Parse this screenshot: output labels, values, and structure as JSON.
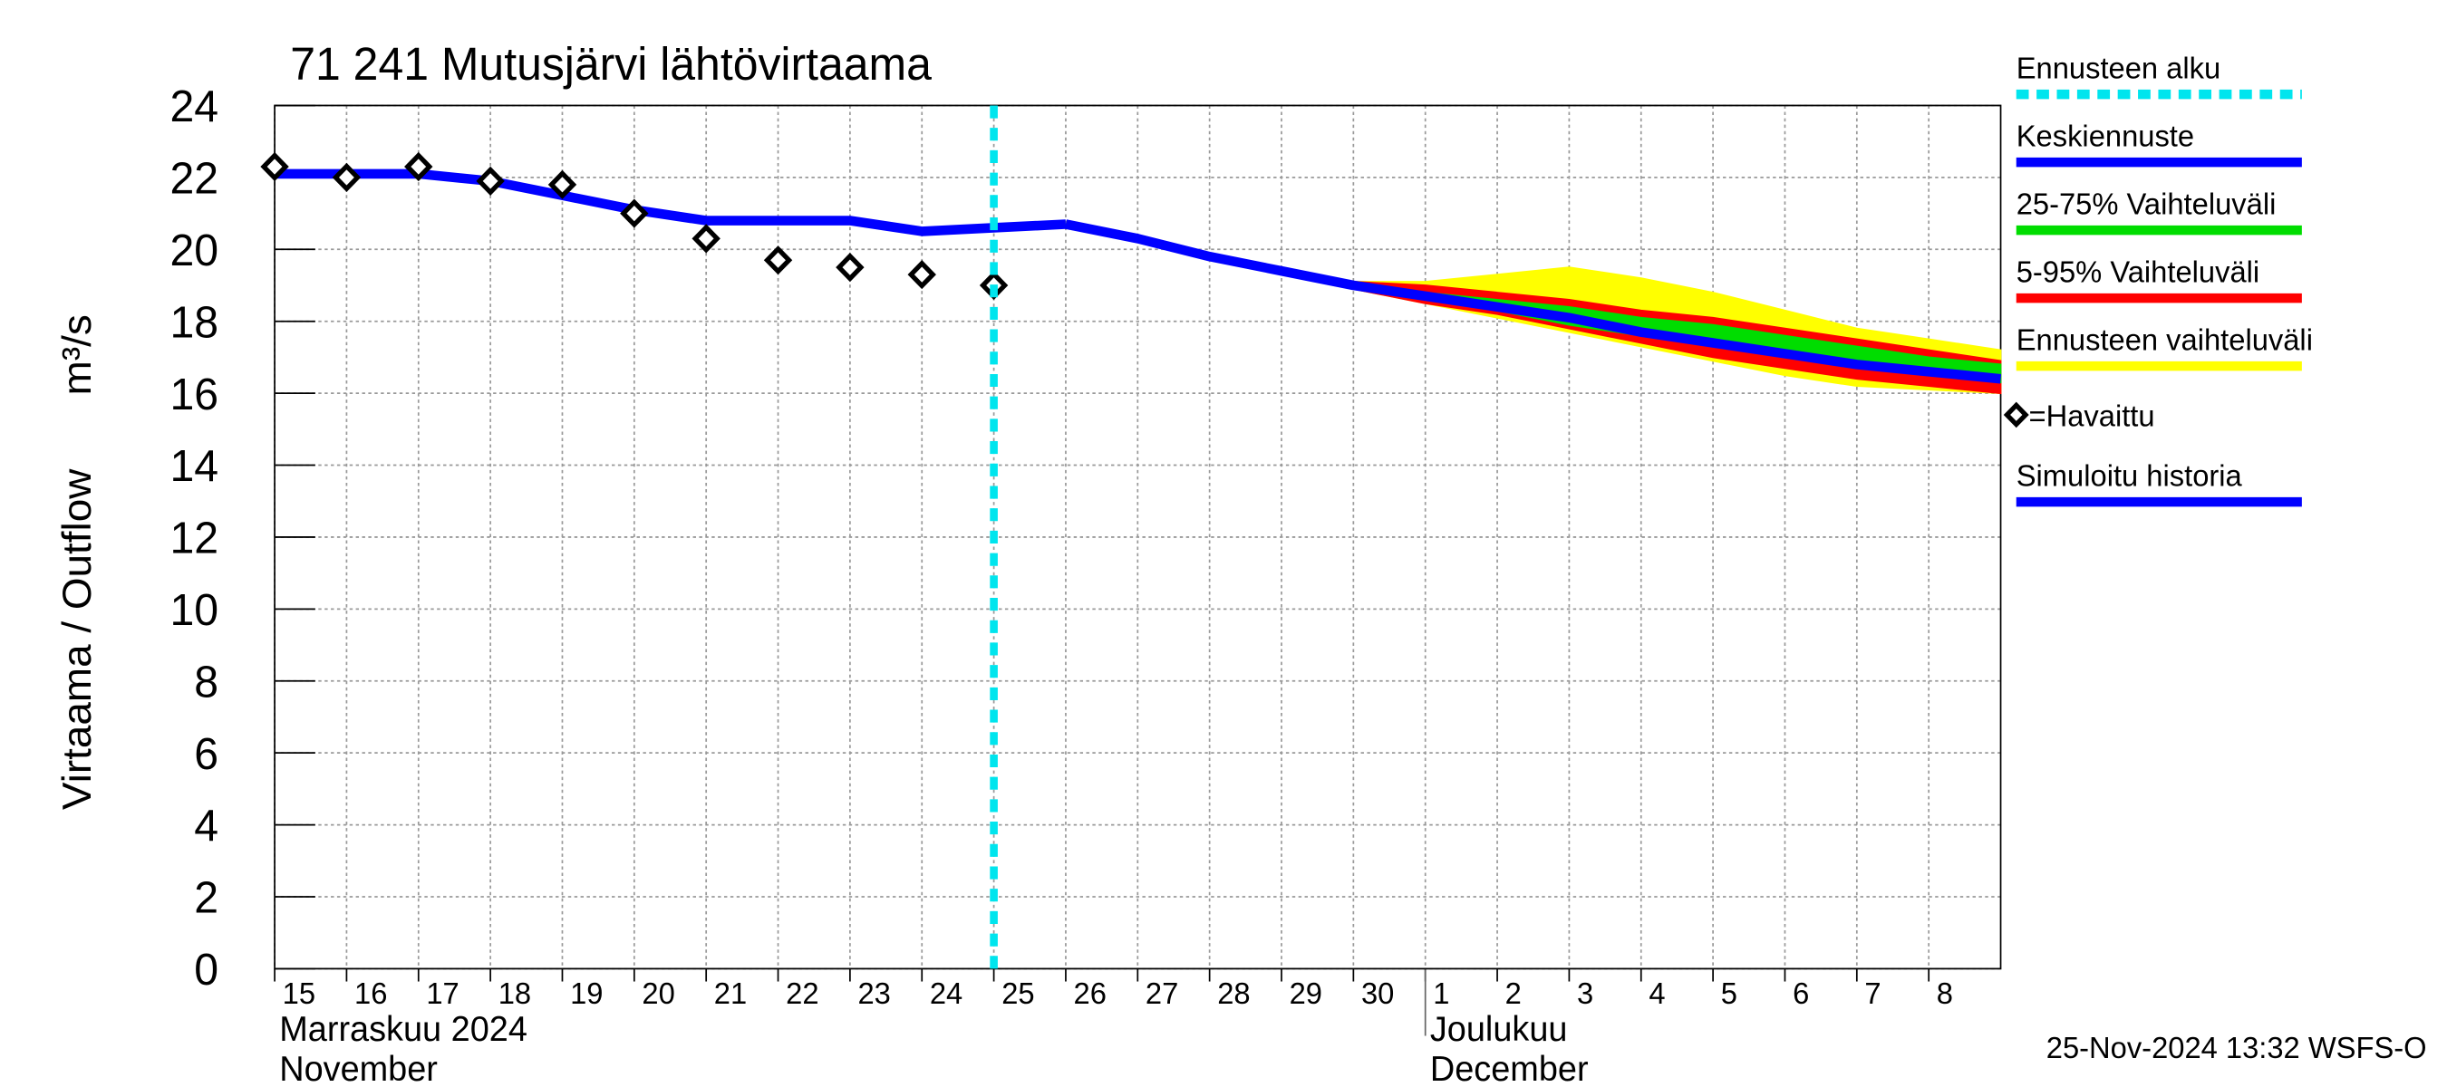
{
  "chart_data": {
    "type": "line",
    "title": "71 241 Mutusjärvi lähtövirtaama",
    "ylabel": "Virtaama / Outflow",
    "yunit": "m³/s",
    "footer": "25-Nov-2024 13:32 WSFS-O",
    "xlim": [
      0,
      24
    ],
    "ylim": [
      0,
      24
    ],
    "yticks": [
      0,
      2,
      4,
      6,
      8,
      10,
      12,
      14,
      16,
      18,
      20,
      22,
      24
    ],
    "xticks": [
      {
        "value": 0,
        "label": "15"
      },
      {
        "value": 1,
        "label": "16"
      },
      {
        "value": 2,
        "label": "17"
      },
      {
        "value": 3,
        "label": "18"
      },
      {
        "value": 4,
        "label": "19"
      },
      {
        "value": 5,
        "label": "20"
      },
      {
        "value": 6,
        "label": "21"
      },
      {
        "value": 7,
        "label": "22"
      },
      {
        "value": 8,
        "label": "23"
      },
      {
        "value": 9,
        "label": "24"
      },
      {
        "value": 10,
        "label": "25"
      },
      {
        "value": 11,
        "label": "26"
      },
      {
        "value": 12,
        "label": "27"
      },
      {
        "value": 13,
        "label": "28"
      },
      {
        "value": 14,
        "label": "29"
      },
      {
        "value": 15,
        "label": "30"
      },
      {
        "value": 16,
        "label": "1"
      },
      {
        "value": 17,
        "label": "2"
      },
      {
        "value": 18,
        "label": "3"
      },
      {
        "value": 19,
        "label": "4"
      },
      {
        "value": 20,
        "label": "5"
      },
      {
        "value": 21,
        "label": "6"
      },
      {
        "value": 22,
        "label": "7"
      },
      {
        "value": 23,
        "label": "8"
      }
    ],
    "months": [
      {
        "x": 0,
        "lines": [
          "Marraskuu 2024",
          "November"
        ]
      },
      {
        "x": 16,
        "lines": [
          "Joulukuu",
          "December"
        ]
      }
    ],
    "grid": true,
    "series": [
      {
        "name": "Ennusteen alku",
        "color": "#00e5ee",
        "type": "vline",
        "x": 10
      },
      {
        "name": "Keskiennuste",
        "color": "#0000ff",
        "type": "line",
        "x": [
          11,
          12,
          13,
          14,
          15,
          16,
          17,
          18,
          19,
          20,
          21,
          22,
          23,
          24
        ],
        "values": [
          20.7,
          20.3,
          19.8,
          19.4,
          19.0,
          18.7,
          18.4,
          18.1,
          17.7,
          17.4,
          17.1,
          16.8,
          16.6,
          16.4
        ]
      },
      {
        "name": "25-75% Vaihteluväli",
        "color": "#00dd00",
        "type": "band",
        "x": [
          11,
          12,
          13,
          14,
          15,
          16,
          17,
          18,
          19,
          20,
          21,
          22,
          23,
          24
        ],
        "upper": [
          20.7,
          20.3,
          19.8,
          19.4,
          19.0,
          18.8,
          18.6,
          18.4,
          18.1,
          17.9,
          17.6,
          17.3,
          17.0,
          16.8
        ],
        "lower": [
          20.6,
          20.2,
          19.7,
          19.3,
          18.9,
          18.6,
          18.3,
          17.9,
          17.6,
          17.3,
          17.0,
          16.7,
          16.5,
          16.3
        ]
      },
      {
        "name": "5-95% Vaihteluväli",
        "color": "#ff0000",
        "type": "band",
        "x": [
          11,
          12,
          13,
          14,
          15,
          16,
          17,
          18,
          19,
          20,
          21,
          22,
          23,
          24
        ],
        "upper": [
          20.7,
          20.3,
          19.8,
          19.4,
          19.1,
          19.0,
          18.8,
          18.6,
          18.3,
          18.1,
          17.8,
          17.5,
          17.2,
          16.9
        ],
        "lower": [
          20.6,
          20.2,
          19.7,
          19.3,
          18.9,
          18.5,
          18.2,
          17.8,
          17.4,
          17.0,
          16.7,
          16.4,
          16.2,
          16.0
        ]
      },
      {
        "name": "Ennusteen vaihteluväli",
        "color": "#ffff00",
        "type": "band",
        "x": [
          11,
          12,
          13,
          14,
          15,
          16,
          17,
          18,
          19,
          20,
          21,
          22,
          23,
          24
        ],
        "upper": [
          20.7,
          20.3,
          19.9,
          19.5,
          19.1,
          19.1,
          19.3,
          19.5,
          19.2,
          18.8,
          18.3,
          17.8,
          17.5,
          17.2
        ],
        "lower": [
          20.6,
          20.2,
          19.7,
          19.3,
          18.9,
          18.5,
          18.1,
          17.7,
          17.3,
          16.9,
          16.5,
          16.2,
          16.1,
          16.0
        ]
      },
      {
        "name": "=Havaittu",
        "color": "#000000",
        "type": "markers",
        "x": [
          0,
          1,
          2,
          3,
          4,
          5,
          6,
          7,
          8,
          9,
          10
        ],
        "values": [
          22.3,
          22.0,
          22.3,
          21.9,
          21.8,
          21.0,
          20.3,
          19.7,
          19.5,
          19.3,
          19.0
        ]
      },
      {
        "name": "Simuloitu historia",
        "color": "#0000ff",
        "type": "line",
        "x": [
          0,
          1,
          2,
          3,
          4,
          5,
          6,
          7,
          8,
          9,
          10,
          11
        ],
        "values": [
          22.1,
          22.1,
          22.1,
          21.9,
          21.5,
          21.1,
          20.8,
          20.8,
          20.8,
          20.5,
          20.6,
          20.7
        ]
      }
    ]
  }
}
